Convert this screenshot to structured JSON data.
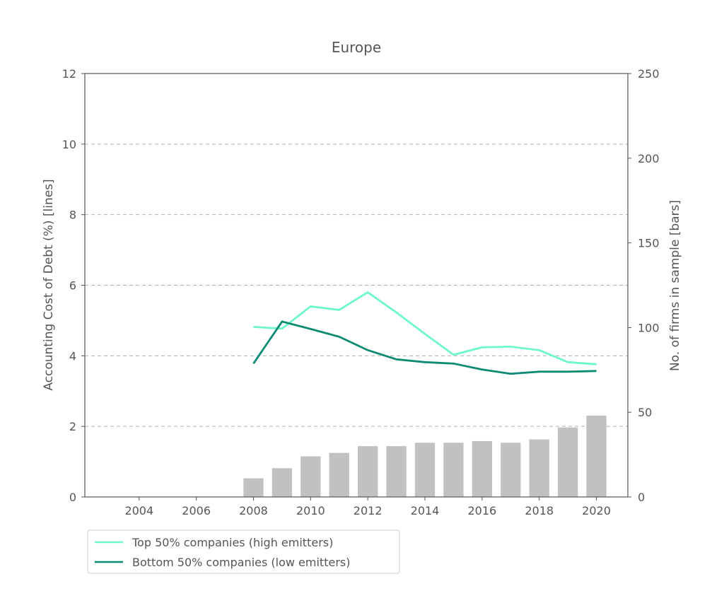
{
  "chart_data": {
    "type": "bar+line",
    "title": "Europe",
    "ylabel_left": "Accounting Cost of Debt (%)  [lines]",
    "ylabel_right": "No. of firms in sample [bars]",
    "xlabel": "",
    "xlim": [
      2002.1,
      2021.1
    ],
    "ylim_left": [
      0,
      12
    ],
    "ylim_right": [
      0,
      250
    ],
    "x_ticks": [
      2004,
      2006,
      2008,
      2010,
      2012,
      2014,
      2016,
      2018,
      2020
    ],
    "y_left_ticks": [
      0,
      2,
      4,
      6,
      8,
      10,
      12
    ],
    "y_right_ticks": [
      0,
      50,
      100,
      150,
      200,
      250
    ],
    "grid": "horizontal dashed at left axis ticks 2-10",
    "legend_position": "below plot, left",
    "bars": {
      "name": "No. of firms in sample",
      "color": "#c0c1c3",
      "x": [
        2008,
        2009,
        2010,
        2011,
        2012,
        2013,
        2014,
        2015,
        2016,
        2017,
        2018,
        2019,
        2020
      ],
      "values": [
        11,
        17,
        24,
        26,
        30,
        30,
        32,
        32,
        33,
        32,
        34,
        41,
        48
      ]
    },
    "series": [
      {
        "name": "Top 50% companies (high emitters)",
        "color": "#6ff7cc",
        "x": [
          2008,
          2009,
          2010,
          2011,
          2012,
          2013,
          2014,
          2015,
          2016,
          2017,
          2018,
          2019,
          2020
        ],
        "values": [
          4.82,
          4.77,
          5.4,
          5.3,
          5.8,
          5.23,
          4.62,
          4.03,
          4.24,
          4.26,
          4.16,
          3.82,
          3.76
        ]
      },
      {
        "name": "Bottom 50% companies (low emitters)",
        "color": "#0d8a73",
        "x": [
          2008,
          2009,
          2010,
          2011,
          2012,
          2013,
          2014,
          2015,
          2016,
          2017,
          2018,
          2019,
          2020
        ],
        "values": [
          3.78,
          4.97,
          4.76,
          4.54,
          4.16,
          3.9,
          3.82,
          3.78,
          3.61,
          3.49,
          3.55,
          3.55,
          3.57
        ]
      }
    ]
  }
}
